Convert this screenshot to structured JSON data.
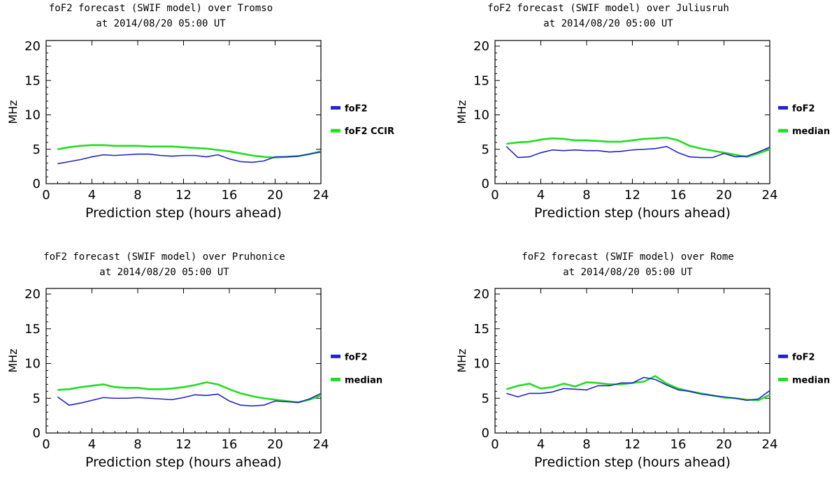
{
  "chart_data": [
    {
      "type": "line",
      "title_line1": "foF2 forecast (SWIF model) over Tromso",
      "title_line2": "at 2014/08/20 05:00 UT",
      "xlabel": "Prediction step (hours ahead)",
      "ylabel": "MHz",
      "xlim": [
        0,
        24
      ],
      "ylim": [
        0,
        20
      ],
      "xticks": [
        "0",
        "4",
        "8",
        "12",
        "16",
        "20",
        "24"
      ],
      "yticks": [
        "0",
        "5",
        "10",
        "15",
        "20"
      ],
      "x": [
        1,
        2,
        3,
        4,
        5,
        6,
        7,
        8,
        9,
        10,
        11,
        12,
        13,
        14,
        15,
        16,
        17,
        18,
        19,
        20,
        21,
        22,
        23,
        24
      ],
      "series": [
        {
          "name": "foF2",
          "color": "#2222cc",
          "values": [
            2.9,
            3.2,
            3.5,
            3.9,
            4.2,
            4.1,
            4.2,
            4.3,
            4.3,
            4.1,
            4.0,
            4.1,
            4.1,
            3.9,
            4.2,
            3.6,
            3.2,
            3.1,
            3.3,
            3.9,
            3.9,
            4.0,
            4.3,
            4.6
          ]
        },
        {
          "name": "foF2 CCIR",
          "color": "#22dd22",
          "values": [
            5.0,
            5.3,
            5.5,
            5.6,
            5.6,
            5.5,
            5.5,
            5.5,
            5.4,
            5.4,
            5.4,
            5.3,
            5.2,
            5.1,
            4.9,
            4.7,
            4.4,
            4.1,
            3.9,
            3.8,
            3.9,
            4.0,
            4.3,
            4.7
          ]
        }
      ]
    },
    {
      "type": "line",
      "title_line1": "foF2 forecast (SWIF model) over Juliusruh",
      "title_line2": "at 2014/08/20 05:00 UT",
      "xlabel": "Prediction step (hours ahead)",
      "ylabel": "MHz",
      "xlim": [
        0,
        24
      ],
      "ylim": [
        0,
        20
      ],
      "xticks": [
        "0",
        "4",
        "8",
        "12",
        "16",
        "20",
        "24"
      ],
      "yticks": [
        "0",
        "5",
        "10",
        "15",
        "20"
      ],
      "x": [
        1,
        2,
        3,
        4,
        5,
        6,
        7,
        8,
        9,
        10,
        11,
        12,
        13,
        14,
        15,
        16,
        17,
        18,
        19,
        20,
        21,
        22,
        23,
        24
      ],
      "series": [
        {
          "name": "foF2",
          "color": "#2222cc",
          "values": [
            5.4,
            3.8,
            3.9,
            4.5,
            4.9,
            4.8,
            4.9,
            4.8,
            4.8,
            4.6,
            4.7,
            4.9,
            5.0,
            5.1,
            5.4,
            4.5,
            3.9,
            3.8,
            3.8,
            4.4,
            3.9,
            4.0,
            4.6,
            5.3
          ]
        },
        {
          "name": "median",
          "color": "#22dd22",
          "values": [
            5.8,
            6.0,
            6.1,
            6.4,
            6.6,
            6.5,
            6.3,
            6.3,
            6.2,
            6.1,
            6.1,
            6.3,
            6.5,
            6.6,
            6.7,
            6.3,
            5.5,
            5.1,
            4.8,
            4.5,
            4.2,
            3.9,
            4.4,
            5.0
          ]
        }
      ]
    },
    {
      "type": "line",
      "title_line1": "foF2 forecast (SWIF model) over Pruhonice",
      "title_line2": "at 2014/08/20 05:00 UT",
      "xlabel": "Prediction step (hours ahead)",
      "ylabel": "MHz",
      "xlim": [
        0,
        24
      ],
      "ylim": [
        0,
        20
      ],
      "xticks": [
        "0",
        "4",
        "8",
        "12",
        "16",
        "20",
        "24"
      ],
      "yticks": [
        "0",
        "5",
        "10",
        "15",
        "20"
      ],
      "x": [
        1,
        2,
        3,
        4,
        5,
        6,
        7,
        8,
        9,
        10,
        11,
        12,
        13,
        14,
        15,
        16,
        17,
        18,
        19,
        20,
        21,
        22,
        23,
        24
      ],
      "series": [
        {
          "name": "foF2",
          "color": "#2222cc",
          "values": [
            5.2,
            4.0,
            4.3,
            4.7,
            5.1,
            5.0,
            5.0,
            5.1,
            5.0,
            4.9,
            4.8,
            5.1,
            5.5,
            5.4,
            5.6,
            4.6,
            4.0,
            3.9,
            4.0,
            4.6,
            4.5,
            4.4,
            4.9,
            5.7
          ]
        },
        {
          "name": "median",
          "color": "#22dd22",
          "values": [
            6.2,
            6.3,
            6.6,
            6.8,
            7.0,
            6.6,
            6.5,
            6.5,
            6.3,
            6.3,
            6.4,
            6.6,
            6.9,
            7.3,
            7.0,
            6.3,
            5.7,
            5.3,
            5.0,
            4.8,
            4.6,
            4.4,
            4.8,
            5.4
          ]
        }
      ]
    },
    {
      "type": "line",
      "title_line1": "foF2 forecast (SWIF model) over Rome",
      "title_line2": "at 2014/08/20 05:00 UT",
      "xlabel": "Prediction step (hours ahead)",
      "ylabel": "MHz",
      "xlim": [
        0,
        24
      ],
      "ylim": [
        0,
        20
      ],
      "xticks": [
        "0",
        "4",
        "8",
        "12",
        "16",
        "20",
        "24"
      ],
      "yticks": [
        "0",
        "5",
        "10",
        "15",
        "20"
      ],
      "x": [
        1,
        2,
        3,
        4,
        5,
        6,
        7,
        8,
        9,
        10,
        11,
        12,
        13,
        14,
        15,
        16,
        17,
        18,
        19,
        20,
        21,
        22,
        23,
        24
      ],
      "series": [
        {
          "name": "foF2",
          "color": "#2222cc",
          "values": [
            5.7,
            5.2,
            5.7,
            5.7,
            5.9,
            6.4,
            6.3,
            6.2,
            6.8,
            6.8,
            7.2,
            7.2,
            8.0,
            7.7,
            6.9,
            6.2,
            6.0,
            5.6,
            5.4,
            5.2,
            5.0,
            4.7,
            4.9,
            6.1
          ]
        },
        {
          "name": "median",
          "color": "#22dd22",
          "values": [
            6.3,
            6.8,
            7.1,
            6.4,
            6.6,
            7.1,
            6.7,
            7.3,
            7.2,
            7.0,
            7.0,
            7.2,
            7.4,
            8.2,
            7.1,
            6.4,
            6.0,
            5.7,
            5.4,
            5.1,
            5.0,
            4.8,
            4.7,
            5.5
          ]
        }
      ]
    }
  ]
}
